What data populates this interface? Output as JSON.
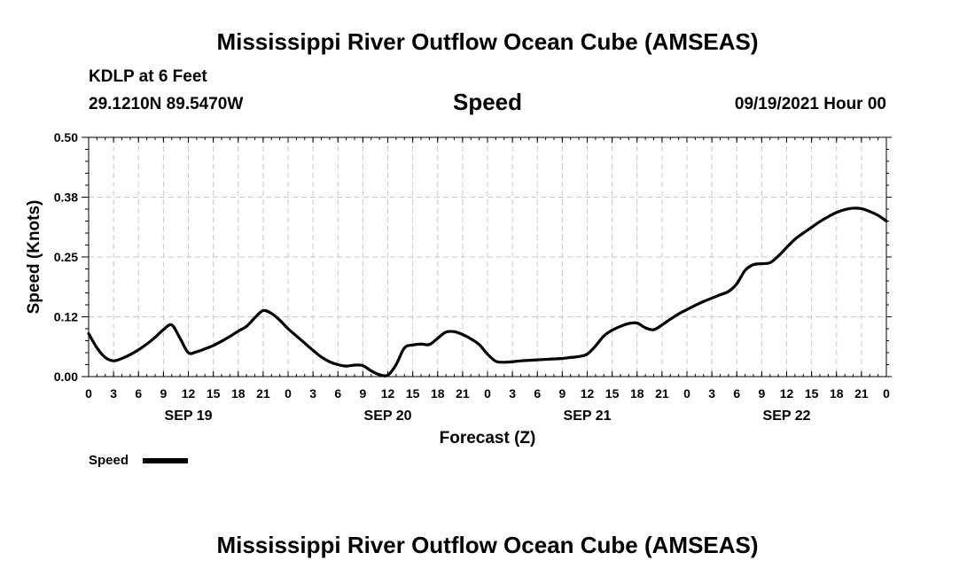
{
  "header": {
    "title": "Mississippi River Outflow Ocean Cube (AMSEAS)",
    "station": "KDLP at 6 Feet",
    "location": "29.1210N  89.5470W",
    "variable": "Speed",
    "datetime": "09/19/2021 Hour 00"
  },
  "footer": {
    "title": "Mississippi River Outflow Ocean Cube (AMSEAS)"
  },
  "legend": {
    "label": "Speed"
  },
  "colors": {
    "line": "#000000",
    "grid": "#c8c8c8"
  },
  "chart_data": {
    "type": "line",
    "title": "Speed",
    "xlabel": "Forecast (Z)",
    "ylabel": "Speed (Knots)",
    "xlim": [
      0,
      96
    ],
    "ylim": [
      0,
      0.5
    ],
    "yticks": [
      "0.00",
      "0.12",
      "0.25",
      "0.38",
      "0.50"
    ],
    "ytick_values": [
      0,
      0.125,
      0.25,
      0.375,
      0.5
    ],
    "xtick_labels": [
      "0",
      "3",
      "6",
      "9",
      "12",
      "15",
      "18",
      "21",
      "0",
      "3",
      "6",
      "9",
      "12",
      "15",
      "18",
      "21",
      "0",
      "3",
      "6",
      "9",
      "12",
      "15",
      "18",
      "21",
      "0",
      "3",
      "6",
      "9",
      "12",
      "15",
      "18",
      "21",
      "0"
    ],
    "day_labels": [
      {
        "label": "SEP 19",
        "hour": 12
      },
      {
        "label": "SEP 20",
        "hour": 36
      },
      {
        "label": "SEP 21",
        "hour": 60
      },
      {
        "label": "SEP 22",
        "hour": 84
      }
    ],
    "grid": true,
    "legend_position": "bottom-left",
    "series": [
      {
        "name": "Speed",
        "x": [
          0,
          1,
          2,
          3,
          4,
          5,
          6,
          7,
          8,
          9,
          10,
          11,
          12,
          13,
          14,
          15,
          16,
          17,
          18,
          19,
          20,
          21,
          22,
          23,
          24,
          25,
          26,
          27,
          28,
          29,
          30,
          31,
          32,
          33,
          34,
          35,
          36,
          37,
          38,
          39,
          40,
          41,
          42,
          43,
          44,
          45,
          46,
          47,
          48,
          49,
          50,
          51,
          52,
          53,
          54,
          55,
          56,
          57,
          58,
          59,
          60,
          61,
          62,
          63,
          64,
          65,
          66,
          67,
          68,
          69,
          70,
          71,
          72,
          73,
          74,
          75,
          76,
          77,
          78,
          79,
          80,
          81,
          82,
          83,
          84,
          85,
          86,
          87,
          88,
          89,
          90,
          91,
          92,
          93,
          94,
          95,
          96
        ],
        "values": [
          0.09,
          0.06,
          0.04,
          0.033,
          0.038,
          0.046,
          0.056,
          0.068,
          0.082,
          0.098,
          0.108,
          0.08,
          0.05,
          0.052,
          0.058,
          0.065,
          0.074,
          0.084,
          0.095,
          0.105,
          0.123,
          0.138,
          0.132,
          0.118,
          0.1,
          0.085,
          0.07,
          0.055,
          0.041,
          0.031,
          0.025,
          0.022,
          0.024,
          0.023,
          0.012,
          0.004,
          0.003,
          0.025,
          0.06,
          0.066,
          0.068,
          0.067,
          0.08,
          0.093,
          0.094,
          0.088,
          0.079,
          0.067,
          0.047,
          0.032,
          0.03,
          0.031,
          0.033,
          0.034,
          0.035,
          0.036,
          0.037,
          0.038,
          0.04,
          0.042,
          0.047,
          0.064,
          0.085,
          0.097,
          0.105,
          0.111,
          0.112,
          0.102,
          0.098,
          0.108,
          0.12,
          0.131,
          0.14,
          0.149,
          0.157,
          0.164,
          0.171,
          0.178,
          0.194,
          0.222,
          0.234,
          0.236,
          0.238,
          0.252,
          0.27,
          0.287,
          0.3,
          0.312,
          0.324,
          0.334,
          0.343,
          0.349,
          0.352,
          0.351,
          0.345,
          0.337,
          0.325
        ]
      }
    ]
  }
}
